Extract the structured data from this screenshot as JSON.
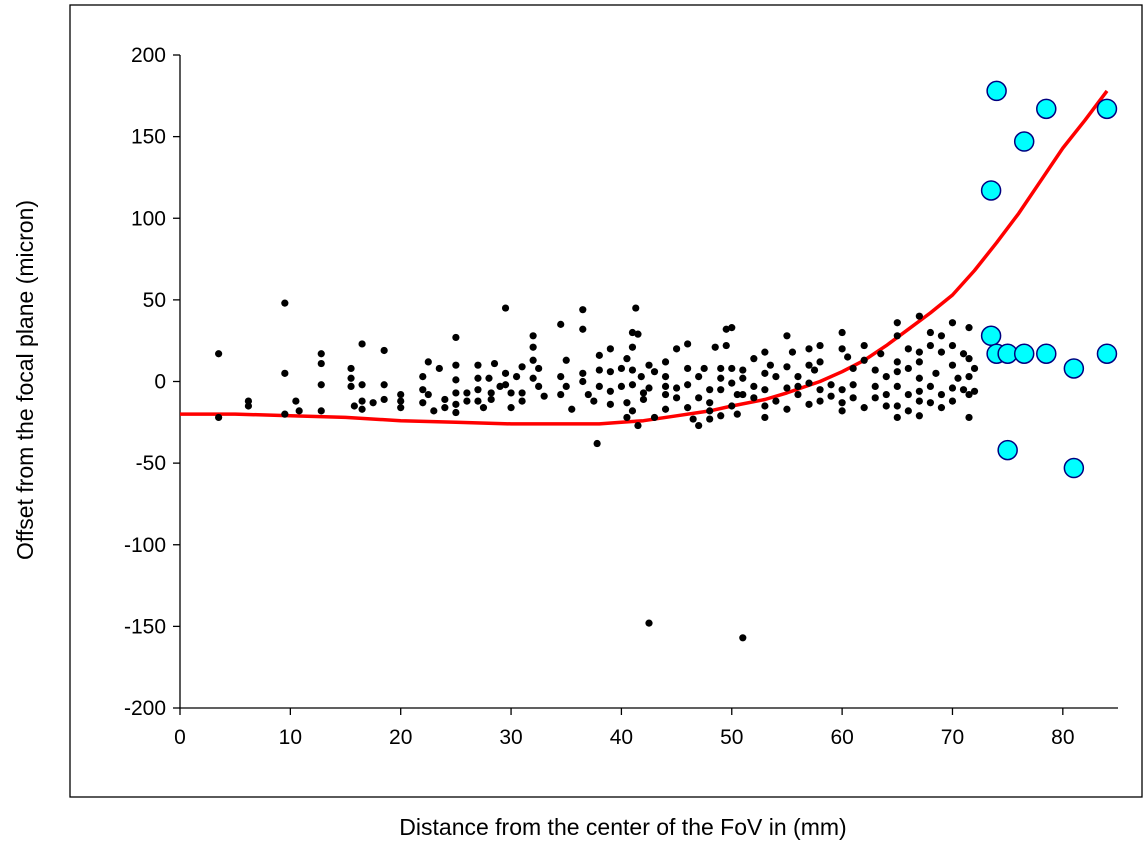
{
  "chart_data": {
    "type": "scatter",
    "xlabel": "Distance from the center of the FoV in (mm)",
    "ylabel": "Offset from the focal plane (micron)",
    "xlim": [
      0,
      85
    ],
    "ylim": [
      -200,
      200
    ],
    "xticks": [
      0,
      10,
      20,
      30,
      40,
      50,
      60,
      70,
      80
    ],
    "yticks": [
      200,
      150,
      100,
      50,
      0,
      -50,
      -100,
      -150,
      -200
    ],
    "grid": false,
    "legend": "none",
    "colors": {
      "black_points": "#000000",
      "cyan_points": "#00ffff",
      "cyan_outline": "#000080",
      "curve": "#ff0000",
      "frame": "#000000"
    },
    "series": [
      {
        "kind": "points",
        "style": "small-black",
        "points": [
          [
            3.5,
            17
          ],
          [
            3.5,
            -22
          ],
          [
            6.2,
            -12
          ],
          [
            6.2,
            -15
          ],
          [
            9.5,
            48
          ],
          [
            9.5,
            5
          ],
          [
            9.5,
            -20
          ],
          [
            10.5,
            -12
          ],
          [
            10.8,
            -18
          ],
          [
            12.8,
            17
          ],
          [
            12.8,
            11
          ],
          [
            12.8,
            -2
          ],
          [
            12.8,
            -18
          ],
          [
            15.5,
            8
          ],
          [
            15.5,
            2
          ],
          [
            15.5,
            -3
          ],
          [
            15.8,
            -15
          ],
          [
            16.5,
            23
          ],
          [
            16.5,
            -2
          ],
          [
            16.5,
            -12
          ],
          [
            16.5,
            -17
          ],
          [
            17.5,
            -13
          ],
          [
            18.5,
            19
          ],
          [
            18.5,
            -2
          ],
          [
            18.5,
            -11
          ],
          [
            20,
            -8
          ],
          [
            20,
            -12
          ],
          [
            20,
            -16
          ],
          [
            22,
            3
          ],
          [
            22,
            -5
          ],
          [
            22,
            -13
          ],
          [
            22.5,
            12
          ],
          [
            22.5,
            -8
          ],
          [
            23,
            -18
          ],
          [
            23.5,
            8
          ],
          [
            24,
            -11
          ],
          [
            24,
            -16
          ],
          [
            25,
            27
          ],
          [
            25,
            10
          ],
          [
            25,
            1
          ],
          [
            25,
            -7
          ],
          [
            25,
            -14
          ],
          [
            25,
            -19
          ],
          [
            26,
            -7
          ],
          [
            26,
            -12
          ],
          [
            27,
            10
          ],
          [
            27,
            2
          ],
          [
            27,
            -5
          ],
          [
            27,
            -12
          ],
          [
            27.5,
            -16
          ],
          [
            28,
            2
          ],
          [
            28.2,
            -7
          ],
          [
            28.2,
            -11
          ],
          [
            28.5,
            11
          ],
          [
            29,
            -3
          ],
          [
            29.5,
            45
          ],
          [
            29.5,
            5
          ],
          [
            29.5,
            -2
          ],
          [
            30,
            -7
          ],
          [
            30,
            -16
          ],
          [
            30.5,
            3
          ],
          [
            31,
            -7
          ],
          [
            31,
            -12
          ],
          [
            31,
            9
          ],
          [
            32,
            28
          ],
          [
            32,
            21
          ],
          [
            32,
            13
          ],
          [
            32,
            2
          ],
          [
            32.5,
            -3
          ],
          [
            32.5,
            8
          ],
          [
            33,
            -9
          ],
          [
            34.5,
            35
          ],
          [
            34.5,
            3
          ],
          [
            34.5,
            -8
          ],
          [
            35,
            13
          ],
          [
            35,
            -3
          ],
          [
            35.5,
            -17
          ],
          [
            36.5,
            44
          ],
          [
            36.5,
            32
          ],
          [
            36.5,
            5
          ],
          [
            36.5,
            0
          ],
          [
            37,
            -8
          ],
          [
            37.5,
            -12
          ],
          [
            37.8,
            -38
          ],
          [
            38,
            16
          ],
          [
            38,
            7
          ],
          [
            38,
            -3
          ],
          [
            39,
            20
          ],
          [
            39,
            6
          ],
          [
            39,
            -6
          ],
          [
            39,
            -14
          ],
          [
            40,
            8
          ],
          [
            40,
            -3
          ],
          [
            40.5,
            14
          ],
          [
            40.5,
            -13
          ],
          [
            40.5,
            -22
          ],
          [
            41,
            30
          ],
          [
            41,
            21
          ],
          [
            41,
            7
          ],
          [
            41,
            -2
          ],
          [
            41,
            -18
          ],
          [
            41.5,
            -27
          ],
          [
            41.3,
            45
          ],
          [
            41.5,
            29
          ],
          [
            41.8,
            3
          ],
          [
            42,
            -7
          ],
          [
            42,
            -11
          ],
          [
            42.5,
            10
          ],
          [
            42.5,
            -4
          ],
          [
            43,
            -22
          ],
          [
            43,
            6
          ],
          [
            44,
            12
          ],
          [
            44,
            3
          ],
          [
            44,
            -3
          ],
          [
            44,
            -8
          ],
          [
            44,
            -17
          ],
          [
            45,
            -4
          ],
          [
            45,
            -10
          ],
          [
            45,
            20
          ],
          [
            46,
            23
          ],
          [
            46,
            8
          ],
          [
            46,
            -2
          ],
          [
            46,
            -16
          ],
          [
            46.5,
            -23
          ],
          [
            47,
            3
          ],
          [
            47,
            -10
          ],
          [
            47,
            -27
          ],
          [
            47.5,
            8
          ],
          [
            48,
            -5
          ],
          [
            48,
            -13
          ],
          [
            48,
            -18
          ],
          [
            48,
            -23
          ],
          [
            48.5,
            21
          ],
          [
            49,
            8
          ],
          [
            49,
            2
          ],
          [
            49,
            -5
          ],
          [
            49,
            -21
          ],
          [
            49.5,
            32
          ],
          [
            49.5,
            22
          ],
          [
            50,
            33
          ],
          [
            50,
            8
          ],
          [
            50,
            -1
          ],
          [
            50,
            -15
          ],
          [
            50.5,
            -8
          ],
          [
            50.5,
            -20
          ],
          [
            51,
            7
          ],
          [
            51,
            2
          ],
          [
            51,
            -8
          ],
          [
            52,
            14
          ],
          [
            52,
            -3
          ],
          [
            52,
            -10
          ],
          [
            53,
            18
          ],
          [
            53,
            5
          ],
          [
            53,
            -5
          ],
          [
            53,
            -15
          ],
          [
            53,
            -22
          ],
          [
            53.5,
            10
          ],
          [
            54,
            3
          ],
          [
            54,
            -12
          ],
          [
            55,
            28
          ],
          [
            55,
            9
          ],
          [
            55,
            -4
          ],
          [
            55,
            -17
          ],
          [
            55.5,
            18
          ],
          [
            56,
            3
          ],
          [
            56,
            -3
          ],
          [
            56,
            -8
          ],
          [
            57,
            20
          ],
          [
            57,
            10
          ],
          [
            57,
            -1
          ],
          [
            57,
            -14
          ],
          [
            57.5,
            7
          ],
          [
            58,
            22
          ],
          [
            58,
            12
          ],
          [
            58,
            -5
          ],
          [
            58,
            -12
          ],
          [
            59,
            -2
          ],
          [
            59,
            -9
          ],
          [
            60,
            30
          ],
          [
            60,
            20
          ],
          [
            60,
            -5
          ],
          [
            60,
            -13
          ],
          [
            60,
            -18
          ],
          [
            60.5,
            15
          ],
          [
            61,
            8
          ],
          [
            61,
            -2
          ],
          [
            61,
            -10
          ],
          [
            62,
            22
          ],
          [
            62,
            13
          ],
          [
            62,
            -16
          ],
          [
            63,
            7
          ],
          [
            63,
            -3
          ],
          [
            63,
            -10
          ],
          [
            63.5,
            17
          ],
          [
            64,
            3
          ],
          [
            64,
            -8
          ],
          [
            64,
            -15
          ],
          [
            65,
            36
          ],
          [
            65,
            28
          ],
          [
            65,
            12
          ],
          [
            65,
            6
          ],
          [
            65,
            -3
          ],
          [
            65,
            -15
          ],
          [
            65,
            -22
          ],
          [
            66,
            20
          ],
          [
            66,
            8
          ],
          [
            66,
            -8
          ],
          [
            66,
            -18
          ],
          [
            67,
            40
          ],
          [
            67,
            18
          ],
          [
            67,
            12
          ],
          [
            67,
            2
          ],
          [
            67,
            -6
          ],
          [
            67,
            -12
          ],
          [
            67,
            -21
          ],
          [
            68,
            30
          ],
          [
            68,
            22
          ],
          [
            68,
            -3
          ],
          [
            68,
            -13
          ],
          [
            68.5,
            5
          ],
          [
            69,
            18
          ],
          [
            69,
            28
          ],
          [
            69,
            -8
          ],
          [
            69,
            -16
          ],
          [
            70,
            36
          ],
          [
            70,
            22
          ],
          [
            70,
            10
          ],
          [
            70,
            -4
          ],
          [
            70,
            -12
          ],
          [
            70.5,
            2
          ],
          [
            71,
            17
          ],
          [
            71,
            -5
          ],
          [
            71.5,
            33
          ],
          [
            71.5,
            14
          ],
          [
            71.5,
            3
          ],
          [
            71.5,
            -8
          ],
          [
            71.5,
            -22
          ],
          [
            72,
            8
          ],
          [
            72,
            -6
          ],
          [
            42.5,
            -148
          ],
          [
            51,
            -157
          ]
        ]
      },
      {
        "kind": "points",
        "style": "large-cyan",
        "points": [
          [
            74,
            178
          ],
          [
            73.5,
            117
          ],
          [
            76.5,
            147
          ],
          [
            78.5,
            167
          ],
          [
            84,
            167
          ],
          [
            73.5,
            28
          ],
          [
            74,
            17
          ],
          [
            75,
            17
          ],
          [
            76.5,
            17
          ],
          [
            78.5,
            17
          ],
          [
            84,
            17
          ],
          [
            81,
            8
          ],
          [
            75,
            -42
          ],
          [
            81,
            -53
          ]
        ]
      },
      {
        "kind": "line",
        "style": "red-curve",
        "points": [
          [
            0,
            -20
          ],
          [
            5,
            -20
          ],
          [
            10,
            -21
          ],
          [
            15,
            -22
          ],
          [
            20,
            -24
          ],
          [
            25,
            -25
          ],
          [
            30,
            -26
          ],
          [
            35,
            -26
          ],
          [
            38,
            -26
          ],
          [
            40,
            -25
          ],
          [
            42,
            -24
          ],
          [
            45,
            -21
          ],
          [
            48,
            -18
          ],
          [
            50,
            -15
          ],
          [
            53,
            -11
          ],
          [
            55,
            -7
          ],
          [
            58,
            0
          ],
          [
            60,
            6
          ],
          [
            62,
            13
          ],
          [
            64,
            22
          ],
          [
            66,
            32
          ],
          [
            68,
            42
          ],
          [
            70,
            53
          ],
          [
            72,
            68
          ],
          [
            74,
            85
          ],
          [
            76,
            103
          ],
          [
            78,
            123
          ],
          [
            80,
            143
          ],
          [
            82,
            160
          ],
          [
            84,
            178
          ]
        ]
      }
    ]
  }
}
